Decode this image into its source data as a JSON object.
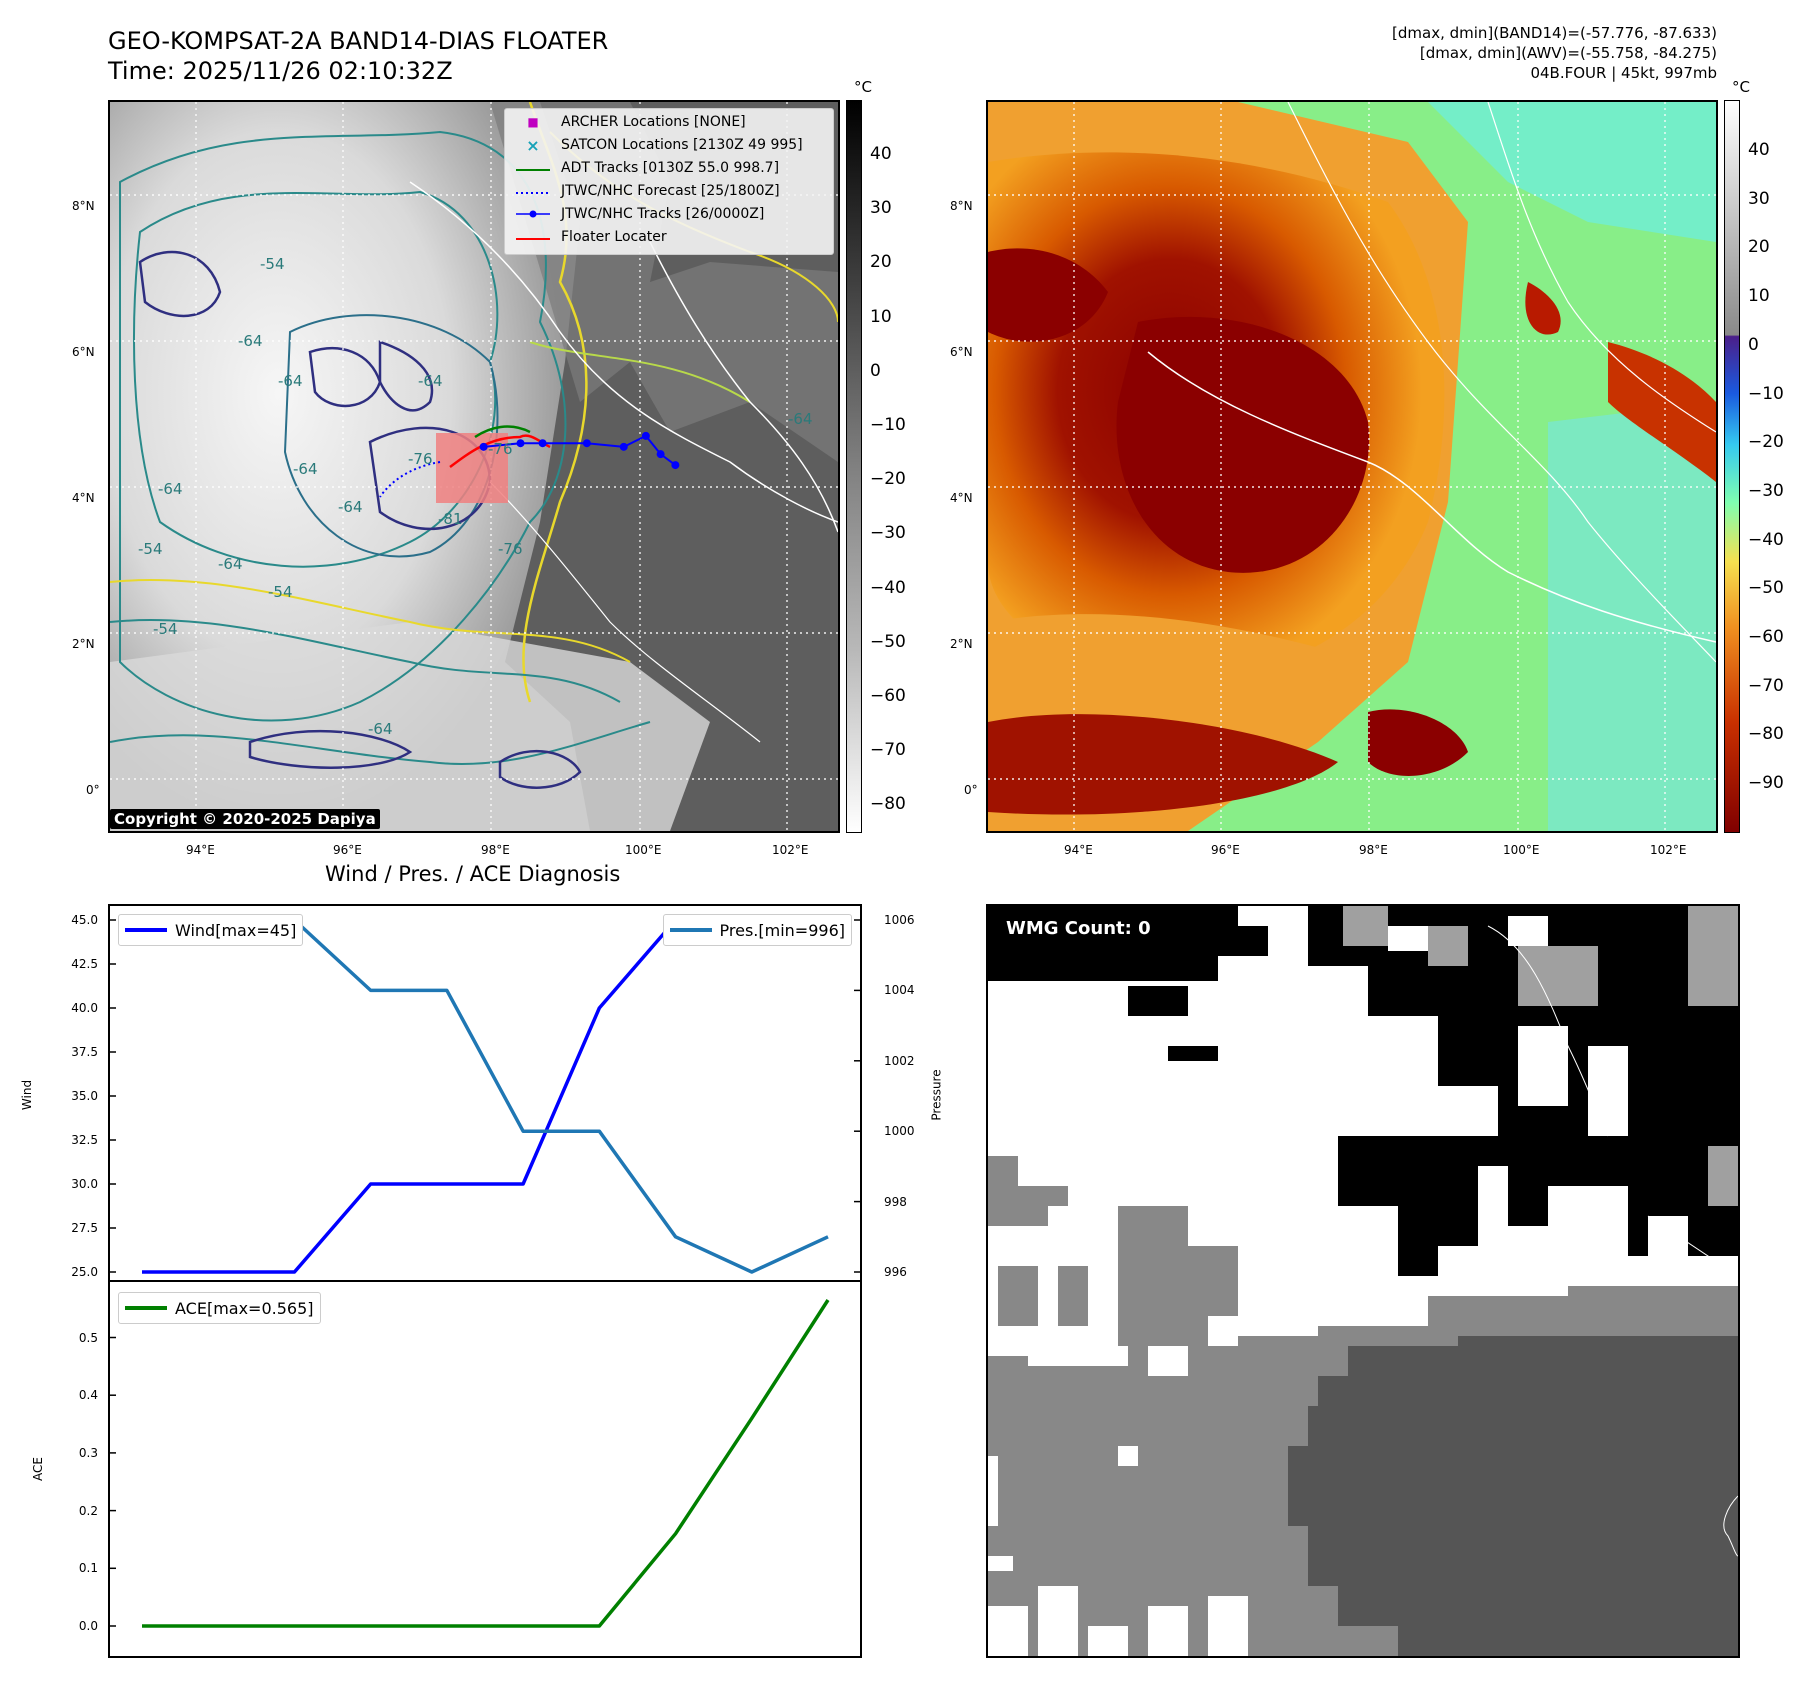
{
  "header": {
    "title_line1": "GEO-KOMPSAT-2A BAND14-DIAS FLOATER",
    "title_line2": "Time: 2025/11/26 02:10:32Z",
    "info_line1": "[dmax, dmin](BAND14)=(-57.776, -87.633)",
    "info_line2": "[dmax, dmin](AWV)=(-55.758, -84.275)",
    "info_line3": "04B.FOUR | 45kt, 997mb"
  },
  "maps": {
    "lat_labels": [
      "8°N",
      "6°N",
      "4°N",
      "2°N",
      "0°"
    ],
    "lon_labels": [
      "94°E",
      "96°E",
      "98°E",
      "100°E",
      "102°E"
    ],
    "copyright": "Copyright © 2020-2025 Dapiya",
    "left_colorbar": {
      "unit": "°C",
      "ticks": [
        "40",
        "30",
        "20",
        "10",
        "0",
        "−10",
        "−20",
        "−30",
        "−40",
        "−50",
        "−60",
        "−70",
        "−80"
      ]
    },
    "right_colorbar": {
      "unit": "°C",
      "ticks": [
        "40",
        "30",
        "20",
        "10",
        "0",
        "−10",
        "−20",
        "−30",
        "−40",
        "−50",
        "−60",
        "−70",
        "−80",
        "−90"
      ]
    },
    "contour_labels": [
      "-54",
      "-64",
      "-64",
      "-64",
      "-64",
      "-54",
      "-64",
      "-54",
      "-64",
      "-64",
      "-76",
      "-76",
      "-81",
      "-76",
      "-64",
      "-64",
      "-54"
    ],
    "legend": [
      {
        "label": "ARCHER Locations [NONE]",
        "marker": "■",
        "color": "#c000c0"
      },
      {
        "label": "SATCON Locations [2130Z 49 995]",
        "marker": "×",
        "color": "#17a2b8"
      },
      {
        "label": "ADT Tracks [0130Z 55.0 998.7]",
        "marker": "line",
        "color": "#008000"
      },
      {
        "label": "JTWC/NHC Forecast [25/1800Z]",
        "marker": "dotted",
        "color": "#0000ff"
      },
      {
        "label": "JTWC/NHC Tracks [26/0000Z]",
        "marker": "dotline",
        "color": "#0000ff"
      },
      {
        "label": "Floater Locater",
        "marker": "line",
        "color": "#ff0000"
      }
    ],
    "jtwc_track": [
      {
        "lon": 100.5,
        "lat": 4.3
      },
      {
        "lon": 100.3,
        "lat": 4.45
      },
      {
        "lon": 100.1,
        "lat": 4.7
      },
      {
        "lon": 99.8,
        "lat": 4.55
      },
      {
        "lon": 99.3,
        "lat": 4.6
      },
      {
        "lon": 98.7,
        "lat": 4.6
      },
      {
        "lon": 98.4,
        "lat": 4.6
      },
      {
        "lon": 97.9,
        "lat": 4.55
      }
    ]
  },
  "diagnosis": {
    "title": "Wind / Pres. / ACE Diagnosis",
    "wind_legend": "Wind[max=45]",
    "pres_legend": "Pres.[min=996]",
    "ace_legend": "ACE[max=0.565]",
    "wind_ylabel": "Wind",
    "pres_ylabel": "Pressure",
    "ace_ylabel": "ACE",
    "wind_ticks": [
      "45.0",
      "42.5",
      "40.0",
      "37.5",
      "35.0",
      "32.5",
      "30.0",
      "27.5",
      "25.0"
    ],
    "pres_ticks": [
      "1006",
      "1004",
      "1002",
      "1000",
      "998",
      "996"
    ],
    "ace_ticks": [
      "0.5",
      "0.4",
      "0.3",
      "0.2",
      "0.1",
      "0.0"
    ]
  },
  "wmg": {
    "label": "WMG Count: 0"
  },
  "chart_data": [
    {
      "type": "line",
      "title": "Wind / Pres. / ACE Diagnosis",
      "x": [
        0,
        1,
        2,
        3,
        4,
        5,
        6,
        7,
        8,
        9
      ],
      "series": [
        {
          "name": "Wind[max=45]",
          "axis": "left",
          "color": "#0000ff",
          "values": [
            25,
            25,
            25,
            30,
            30,
            30,
            40,
            45,
            null,
            null
          ]
        },
        {
          "name": "Pres.[min=996]",
          "axis": "right",
          "color": "#1f77b4",
          "values": [
            1006,
            1006,
            1006,
            1004,
            1004,
            1000,
            1000,
            997,
            996,
            997
          ]
        }
      ],
      "ylabel": "Wind",
      "ylim": [
        24.5,
        46
      ],
      "y2label": "Pressure",
      "y2lim": [
        995.5,
        1006.5
      ]
    },
    {
      "type": "line",
      "x": [
        0,
        1,
        2,
        3,
        4,
        5,
        6,
        7,
        8,
        9
      ],
      "series": [
        {
          "name": "ACE[max=0.565]",
          "color": "#008000",
          "values": [
            0,
            0,
            0,
            0,
            0,
            0,
            0,
            0.16,
            0.36,
            0.565
          ]
        }
      ],
      "ylabel": "ACE",
      "ylim": [
        -0.03,
        0.6
      ]
    }
  ]
}
